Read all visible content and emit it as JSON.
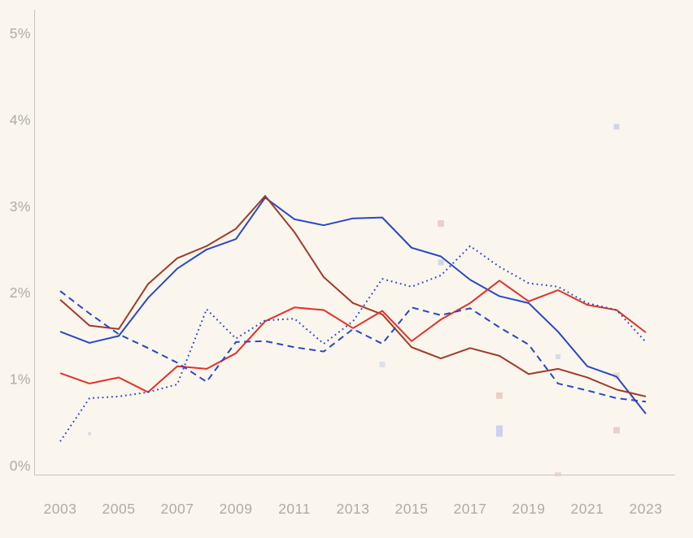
{
  "page": {
    "background": "#faf6ee"
  },
  "chart_data": {
    "type": "line",
    "title": "",
    "xlabel": "",
    "ylabel": "",
    "legend": "none",
    "grid": false,
    "background": "#faf6ee",
    "axis_color": "#cac2b5",
    "tick_color": "#b3aaa0",
    "ylim": [
      0,
      5
    ],
    "xlim": [
      2003,
      2023
    ],
    "x": [
      2003,
      2004,
      2005,
      2006,
      2007,
      2008,
      2009,
      2010,
      2011,
      2012,
      2013,
      2014,
      2015,
      2016,
      2017,
      2018,
      2019,
      2020,
      2021,
      2022,
      2023
    ],
    "series": [
      {
        "name": "blue-solid",
        "color": "#2a47c5",
        "style": "solid",
        "values": [
          1.55,
          1.42,
          1.5,
          1.94,
          2.28,
          2.5,
          2.62,
          3.1,
          2.85,
          2.78,
          2.86,
          2.87,
          2.52,
          2.42,
          2.15,
          1.96,
          1.88,
          1.55,
          1.15,
          1.03,
          0.6
        ]
      },
      {
        "name": "dark-red-solid",
        "color": "#a23a28",
        "style": "solid",
        "values": [
          1.92,
          1.62,
          1.58,
          2.1,
          2.4,
          2.54,
          2.74,
          3.12,
          2.7,
          2.18,
          1.88,
          1.75,
          1.37,
          1.24,
          1.36,
          1.27,
          1.06,
          1.12,
          1.02,
          0.88,
          0.8
        ]
      },
      {
        "name": "red-solid",
        "color": "#e23128",
        "style": "solid",
        "values": [
          1.07,
          0.95,
          1.02,
          0.85,
          1.15,
          1.12,
          1.3,
          1.67,
          1.83,
          1.8,
          1.59,
          1.79,
          1.44,
          1.69,
          1.88,
          2.14,
          1.9,
          2.03,
          1.86,
          1.8,
          1.54
        ]
      },
      {
        "name": "blue-dashed",
        "color": "#2a47c5",
        "style": "dashed",
        "values": [
          2.02,
          1.76,
          1.52,
          1.36,
          1.19,
          0.97,
          1.43,
          1.44,
          1.37,
          1.32,
          1.58,
          1.41,
          1.83,
          1.74,
          1.82,
          1.6,
          1.4,
          0.95,
          0.87,
          0.78,
          0.74
        ]
      },
      {
        "name": "blue-dotted",
        "color": "#2a47c5",
        "style": "dotted",
        "values": [
          0.28,
          0.78,
          0.8,
          0.85,
          0.94,
          1.81,
          1.47,
          1.68,
          1.7,
          1.41,
          1.67,
          2.16,
          2.07,
          2.2,
          2.54,
          2.3,
          2.11,
          2.07,
          1.88,
          1.8,
          1.43
        ]
      }
    ],
    "scatter": [
      {
        "x": 2004,
        "y": 0.37,
        "w": 4,
        "h": 4,
        "color": "#d6d9e4"
      },
      {
        "x": 2014,
        "y": 1.17,
        "w": 7,
        "h": 7,
        "color": "#d9dcea"
      },
      {
        "x": 2016,
        "y": 2.35,
        "w": 7,
        "h": 7,
        "color": "#ccd2ea"
      },
      {
        "x": 2016,
        "y": 2.8,
        "w": 8,
        "h": 8,
        "color": "#e7ccc4"
      },
      {
        "x": 2018,
        "y": 0.4,
        "w": 8,
        "h": 14,
        "color": "#c5cdf0"
      },
      {
        "x": 2018,
        "y": 0.81,
        "w": 8,
        "h": 8,
        "color": "#e7cbc2"
      },
      {
        "x": 2020,
        "y": 1.26,
        "w": 6,
        "h": 6,
        "color": "#d3d8ec"
      },
      {
        "x": 2020,
        "y": -0.1,
        "w": 8,
        "h": 5,
        "color": "#e9d2cb"
      },
      {
        "x": 2022,
        "y": 3.92,
        "w": 7,
        "h": 7,
        "color": "#ccd0ec"
      },
      {
        "x": 2022,
        "y": 1.04,
        "w": 8,
        "h": 8,
        "color": "#eed7d2"
      },
      {
        "x": 2022,
        "y": 0.41,
        "w": 8,
        "h": 8,
        "color": "#e7cdc5"
      }
    ],
    "y_ticks": [
      {
        "v": 0,
        "label": "0%"
      },
      {
        "v": 1,
        "label": "1%"
      },
      {
        "v": 2,
        "label": "2%"
      },
      {
        "v": 3,
        "label": "3%"
      },
      {
        "v": 4,
        "label": "4%"
      },
      {
        "v": 5,
        "label": "5%"
      }
    ],
    "x_ticks": [
      {
        "v": 2003,
        "label": "2003"
      },
      {
        "v": 2005,
        "label": "2005"
      },
      {
        "v": 2007,
        "label": "2007"
      },
      {
        "v": 2009,
        "label": "2009"
      },
      {
        "v": 2011,
        "label": "2011"
      },
      {
        "v": 2013,
        "label": "2013"
      },
      {
        "v": 2015,
        "label": "2015"
      },
      {
        "v": 2017,
        "label": "2017"
      },
      {
        "v": 2019,
        "label": "2019"
      },
      {
        "v": 2021,
        "label": "2021"
      },
      {
        "v": 2023,
        "label": "2023"
      }
    ]
  }
}
